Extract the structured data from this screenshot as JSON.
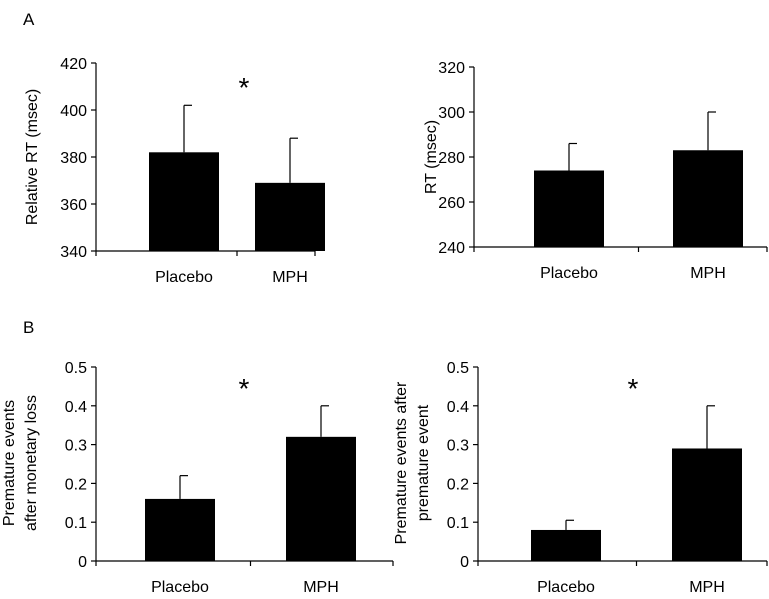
{
  "panel_labels": {
    "a": "A",
    "b": "B"
  },
  "colors": {
    "bar": "#000000",
    "axis": "#000000"
  },
  "chart_data": [
    {
      "type": "bar",
      "panel": "A",
      "ylabel": "Relative RT (msec)",
      "categories": [
        "Placebo",
        "MPH"
      ],
      "values": [
        382,
        369
      ],
      "errors": [
        20,
        19
      ],
      "ylim": [
        340,
        420
      ],
      "yticks": [
        "340",
        "360",
        "380",
        "400",
        "420"
      ],
      "significance": "*"
    },
    {
      "type": "bar",
      "ylabel": "RT (msec)",
      "categories": [
        "Placebo",
        "MPH"
      ],
      "values": [
        274,
        283
      ],
      "errors": [
        12,
        17
      ],
      "ylim": [
        240,
        320
      ],
      "yticks": [
        "240",
        "260",
        "280",
        "300",
        "320"
      ],
      "significance": ""
    },
    {
      "type": "bar",
      "panel": "B",
      "ylabel": [
        "Premature events",
        "after monetary loss"
      ],
      "categories": [
        "Placebo",
        "MPH"
      ],
      "values": [
        0.16,
        0.32
      ],
      "errors": [
        0.06,
        0.08
      ],
      "ylim": [
        0,
        0.5
      ],
      "yticks": [
        "0",
        "0.1",
        "0.2",
        "0.3",
        "0.4",
        "0.5"
      ],
      "significance": "*"
    },
    {
      "type": "bar",
      "ylabel": [
        "Premature events after",
        "premature event"
      ],
      "categories": [
        "Placebo",
        "MPH"
      ],
      "values": [
        0.08,
        0.29
      ],
      "errors": [
        0.025,
        0.11
      ],
      "ylim": [
        0,
        0.5
      ],
      "yticks": [
        "0",
        "0.1",
        "0.2",
        "0.3",
        "0.4",
        "0.5"
      ],
      "significance": "*"
    }
  ]
}
